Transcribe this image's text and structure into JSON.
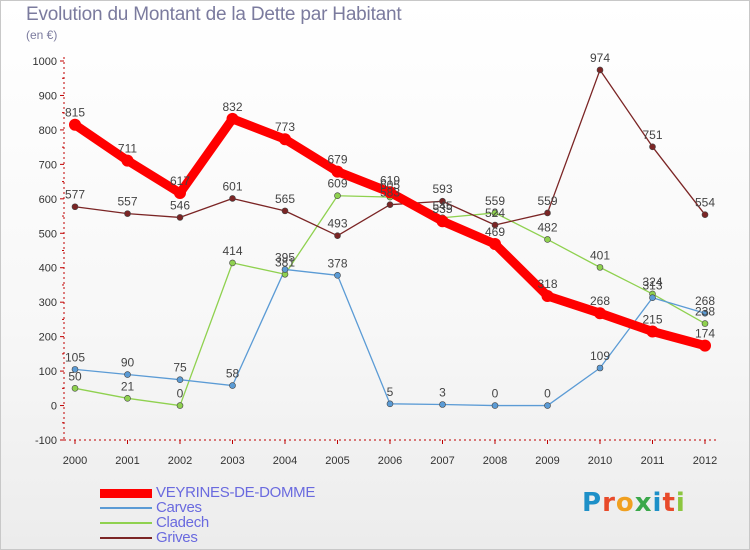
{
  "title": "Evolution du Montant de la Dette par Habitant",
  "subtitle": "(en €)",
  "brand": {
    "text": "Proxiti",
    "letter_colors": [
      "#1e90c8",
      "#e84a2a",
      "#f0a020",
      "#3aa84a",
      "#1e90c8",
      "#e84a2a",
      "#8cc63f"
    ]
  },
  "chart_data": {
    "type": "line",
    "x": [
      "2000",
      "2001",
      "2002",
      "2003",
      "2004",
      "2005",
      "2006",
      "2007",
      "2008",
      "2009",
      "2010",
      "2011",
      "2012"
    ],
    "ylim": [
      -100,
      1000
    ],
    "yticks": [
      -100,
      0,
      100,
      200,
      300,
      400,
      500,
      600,
      700,
      800,
      900,
      1000
    ],
    "grid": false,
    "legend_position": "bottom-left",
    "series": [
      {
        "name": "VEYRINES-DE-DOMME",
        "color": "#ff0000",
        "values": [
          815,
          711,
          617,
          832,
          773,
          679,
          619,
          535,
          469,
          318,
          268,
          215,
          174
        ],
        "labels": [
          "815",
          "711",
          "617",
          "832",
          "773",
          "679",
          "619",
          "535",
          "469",
          "318",
          "268",
          "215",
          "174"
        ],
        "bold": true
      },
      {
        "name": "Carves",
        "color": "#5b9bd5",
        "values": [
          105,
          90,
          75,
          58,
          395,
          378,
          5,
          3,
          0,
          0,
          109,
          313,
          268
        ],
        "labels": [
          "105",
          "90",
          "75",
          "58",
          "395",
          "378",
          "5",
          "3",
          "0",
          "0",
          "109",
          "313",
          "268"
        ]
      },
      {
        "name": "Cladech",
        "color": "#8fd14f",
        "values": [
          50,
          21,
          0,
          414,
          381,
          609,
          605,
          545,
          559,
          482,
          401,
          324,
          238
        ],
        "labels": [
          "50",
          "21",
          "0",
          "414",
          "381",
          "609",
          "605",
          "545",
          "559",
          "482",
          "401",
          "324",
          "238"
        ]
      },
      {
        "name": "Grives",
        "color": "#7b2525",
        "values": [
          577,
          557,
          546,
          601,
          565,
          493,
          583,
          593,
          524,
          559,
          974,
          751,
          554
        ],
        "labels": [
          "577",
          "557",
          "546",
          "601",
          "565",
          "493",
          "583",
          "593",
          "524",
          "559",
          "974",
          "751",
          "554"
        ]
      }
    ]
  }
}
